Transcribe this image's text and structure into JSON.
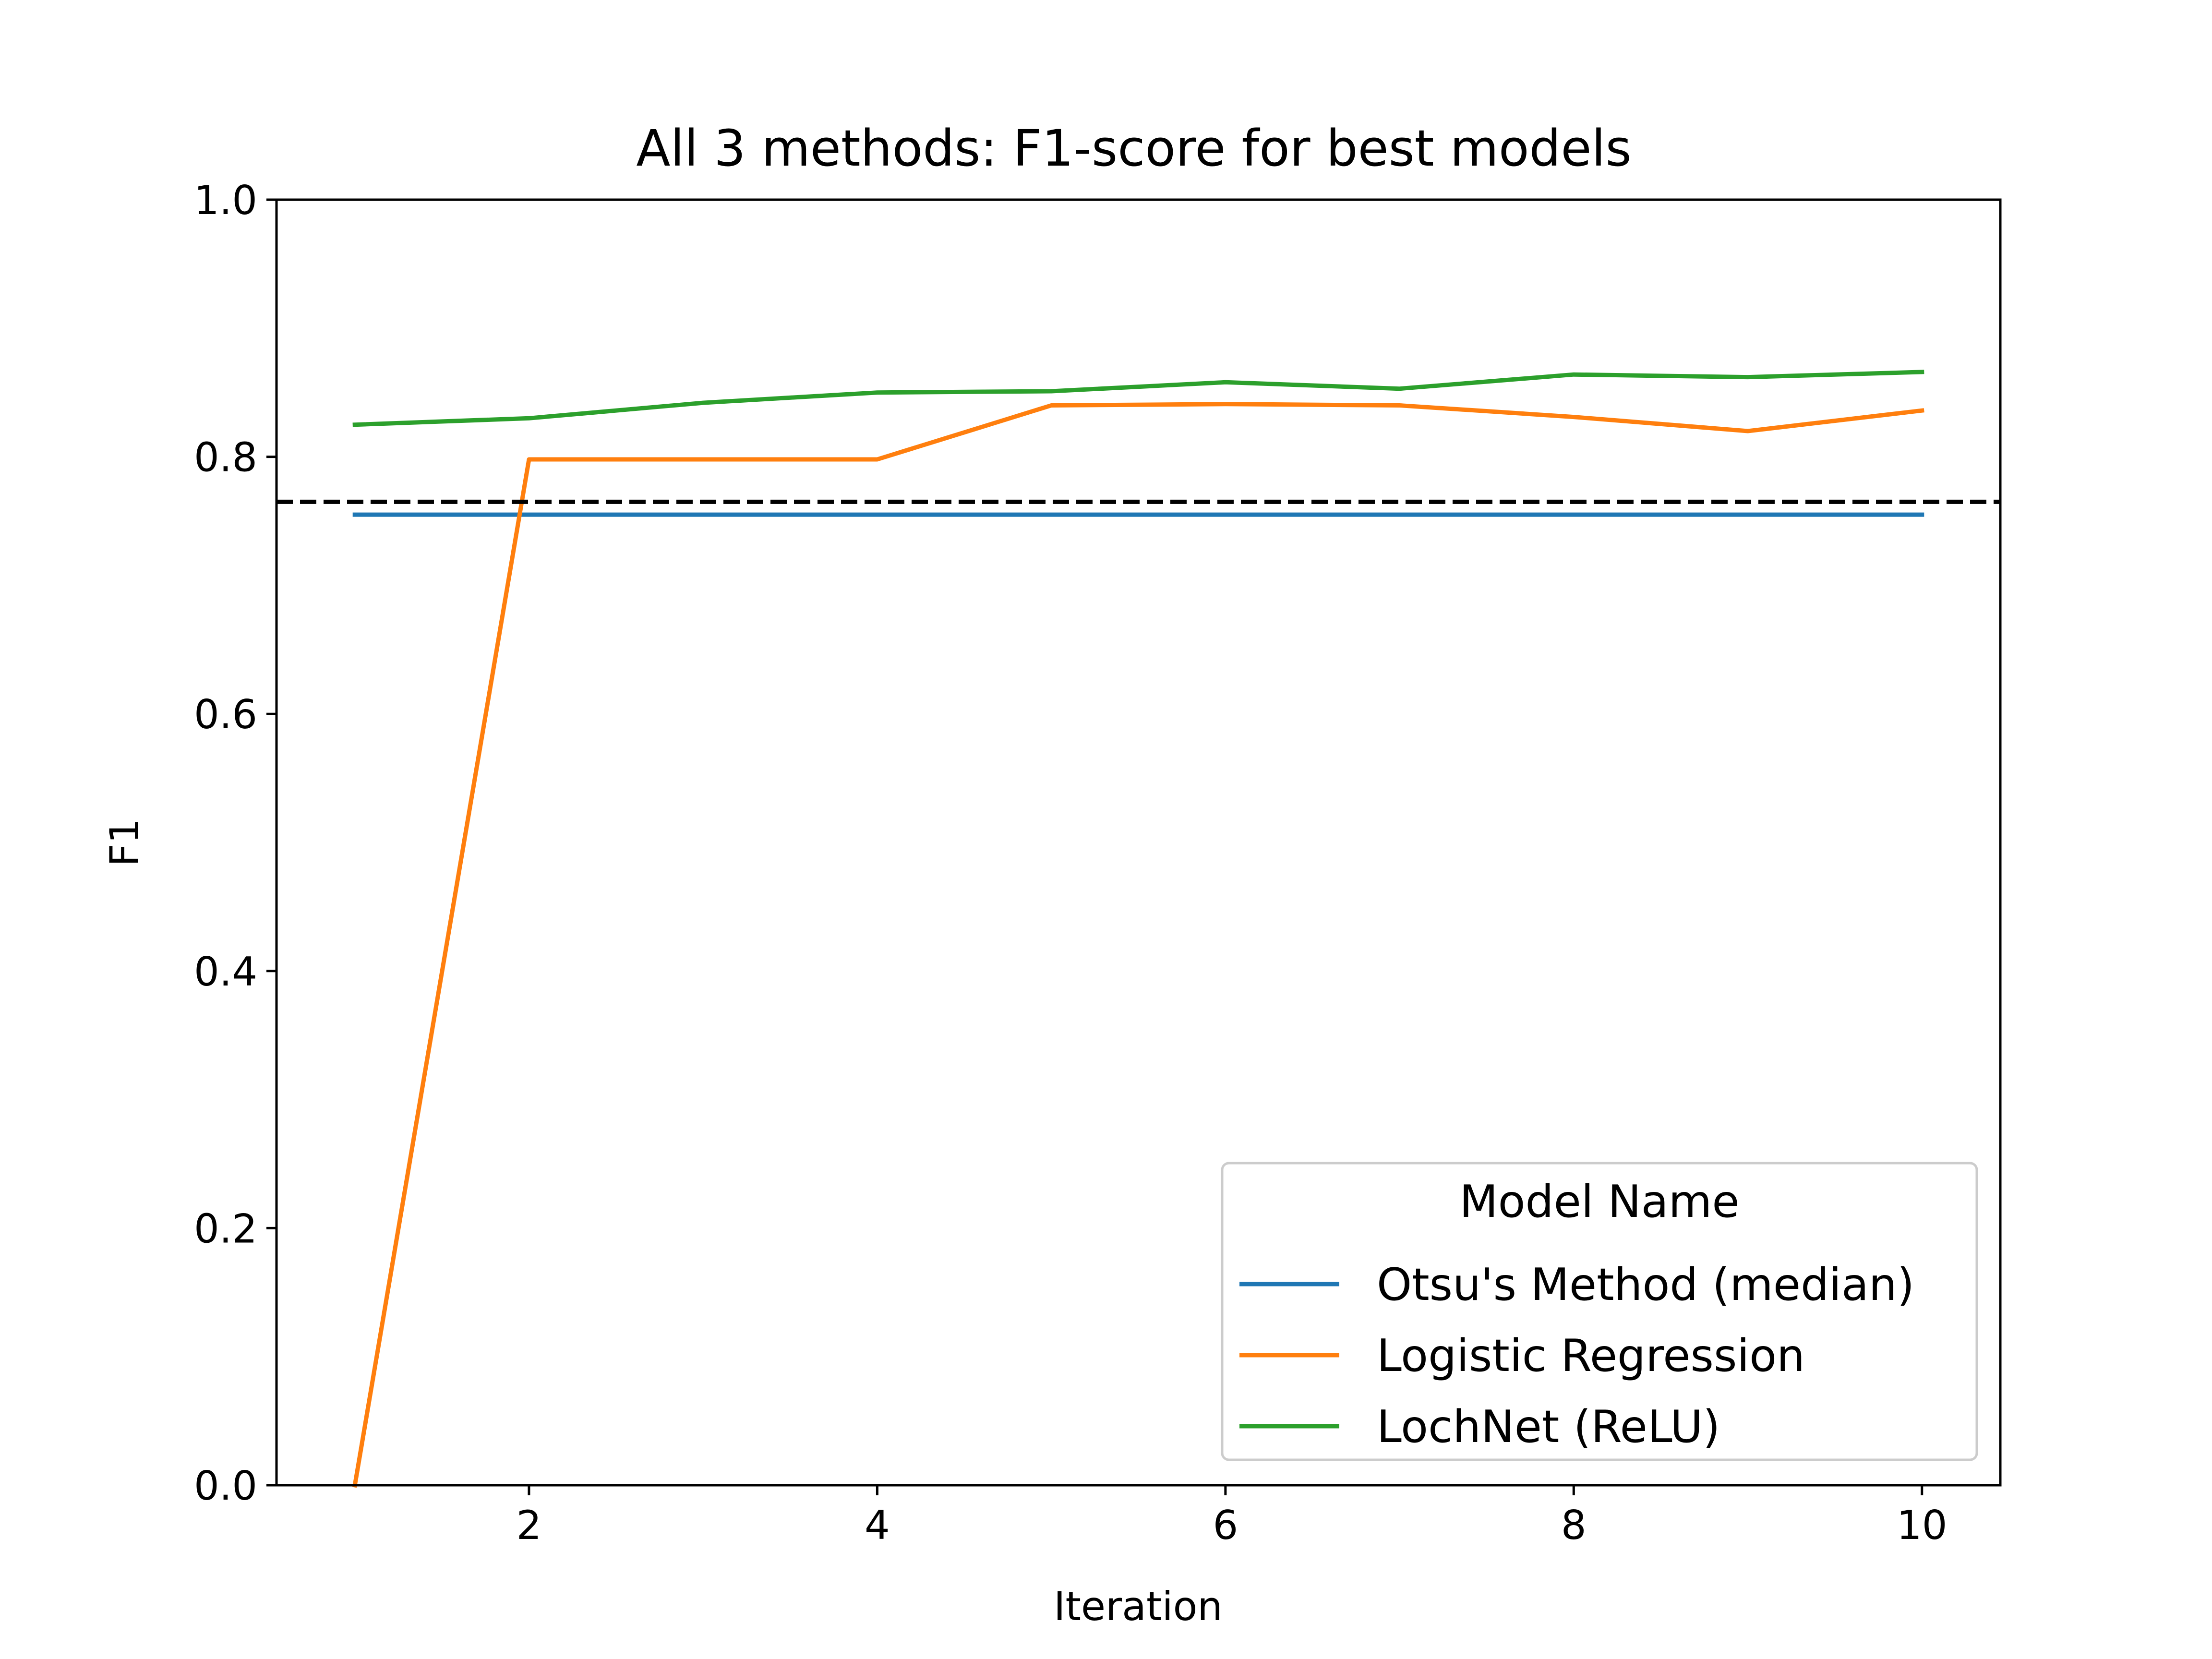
{
  "chart_data": {
    "type": "line",
    "title": "All 3 methods: F1-score for best models",
    "xlabel": "Iteration",
    "ylabel": "F1",
    "xlim": [
      0.55,
      10.45
    ],
    "ylim": [
      0.0,
      1.0
    ],
    "xticks": [
      2,
      4,
      6,
      8,
      10
    ],
    "yticks": [
      0.0,
      0.2,
      0.4,
      0.6,
      0.8,
      1.0
    ],
    "grid": false,
    "legend": {
      "title": "Model Name",
      "placement": "lower-right"
    },
    "x": [
      1,
      2,
      3,
      4,
      5,
      6,
      7,
      8,
      9,
      10
    ],
    "series": [
      {
        "name": "Otsu's Method (median)",
        "color": "#1f77b4",
        "values": [
          0.755,
          0.755,
          0.755,
          0.755,
          0.755,
          0.755,
          0.755,
          0.755,
          0.755,
          0.755
        ]
      },
      {
        "name": "Logistic Regression",
        "color": "#ff7f0e",
        "values": [
          0.0,
          0.798,
          0.798,
          0.798,
          0.84,
          0.841,
          0.84,
          0.831,
          0.82,
          0.836
        ]
      },
      {
        "name": "LochNet (ReLU)",
        "color": "#2ca02c",
        "values": [
          0.825,
          0.83,
          0.842,
          0.85,
          0.851,
          0.858,
          0.853,
          0.864,
          0.862,
          0.866
        ]
      }
    ],
    "reference_line": {
      "y": 0.765,
      "style": "dashed",
      "color": "#000000"
    }
  }
}
